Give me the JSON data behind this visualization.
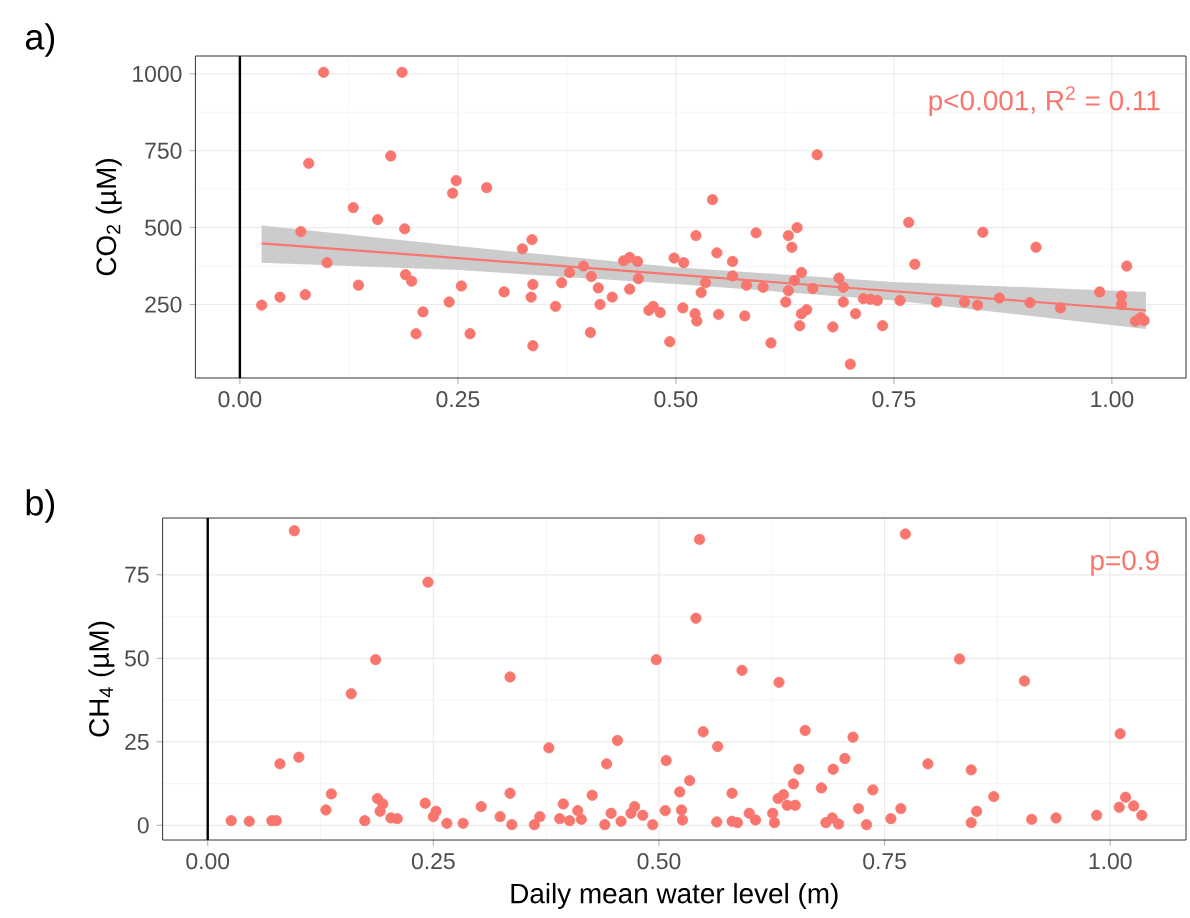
{
  "chart_data": [
    {
      "type": "scatter",
      "title": "a)",
      "ylabel": "CO$_{2}$ (µM)",
      "annotations": [
        "p<0.001, R$^{2}$ = 0.11"
      ],
      "xlim": [
        -0.051,
        1.085
      ],
      "ylim": [
        11,
        1058
      ],
      "xticks": [
        {
          "value": 0,
          "label": "0.00"
        },
        {
          "value": 0.25,
          "label": "0.25"
        },
        {
          "value": 0.5,
          "label": "0.50"
        },
        {
          "value": 0.75,
          "label": "0.75"
        },
        {
          "value": 1,
          "label": "1.00"
        }
      ],
      "yticks": [
        250,
        500,
        750,
        1000
      ],
      "grid": true,
      "marker": "circle",
      "ref_lines": [
        {
          "axis": "x",
          "value": 0,
          "color": "#000000"
        }
      ],
      "series": [
        {
          "color": "#f8766d",
          "x": [
            0.096,
            0.186,
            0.079,
            0.173,
            0.248,
            0.244,
            0.283,
            0.13,
            0.158,
            0.189,
            0.07,
            0.1,
            0.19,
            0.197,
            0.136,
            0.075,
            0.046,
            0.025,
            0.21,
            0.202,
            0.264,
            0.24,
            0.254,
            0.303,
            0.324,
            0.335,
            0.336,
            0.334,
            0.336,
            0.362,
            0.369,
            0.378,
            0.394,
            0.403,
            0.411,
            0.413,
            0.402,
            0.427,
            0.44,
            0.447,
            0.456,
            0.447,
            0.457,
            0.469,
            0.474,
            0.482,
            0.493,
            0.498,
            0.509,
            0.508,
            0.523,
            0.542,
            0.529,
            0.534,
            0.522,
            0.524,
            0.547,
            0.565,
            0.565,
            0.549,
            0.579,
            0.581,
            0.592,
            0.6,
            0.609,
            0.629,
            0.639,
            0.633,
            0.644,
            0.636,
            0.629,
            0.626,
            0.657,
            0.662,
            0.65,
            0.644,
            0.642,
            0.687,
            0.692,
            0.692,
            0.68,
            0.706,
            0.7,
            0.715,
            0.723,
            0.731,
            0.737,
            0.757,
            0.767,
            0.774,
            0.799,
            0.831,
            0.846,
            0.852,
            0.871,
            0.906,
            0.913,
            0.941,
            0.986,
            1.011,
            1.011,
            1.017,
            1.027,
            1.037,
            1.033
          ],
          "values": [
            1005,
            1005,
            709,
            733,
            653,
            612,
            630,
            565,
            526,
            496,
            487,
            386,
            347,
            326,
            313,
            282,
            274,
            248,
            226,
            155,
            155,
            258,
            310,
            291,
            431,
            461,
            315,
            274,
            116,
            244,
            321,
            354,
            375,
            341,
            304,
            250,
            159,
            274,
            392,
            403,
            390,
            300,
            334,
            231,
            244,
            224,
            129,
            401,
            386,
            239,
            474,
            591,
            289,
            321,
            220,
            196,
            418,
            390,
            343,
            218,
            213,
            313,
            483,
            306,
            125,
            474,
            500,
            436,
            354,
            328,
            295,
            258,
            302,
            737,
            233,
            220,
            181,
            336,
            306,
            258,
            177,
            220,
            56,
            269,
            267,
            263,
            181,
            263,
            517,
            381,
            258,
            258,
            248,
            485,
            271,
            256,
            436,
            239,
            291,
            278,
            250,
            375,
            196,
            198,
            207
          ]
        },
        {
          "type": "line",
          "marker": "none",
          "color": "#f8766d",
          "x": [
            0.025,
            0.25,
            0.5,
            0.75,
            1.039
          ],
          "values": [
            449,
            401,
            347,
            293,
            231
          ],
          "lower": [
            386,
            362,
            317,
            263,
            170
          ],
          "upper": [
            507,
            440,
            371,
            323,
            291
          ]
        }
      ]
    },
    {
      "type": "scatter",
      "title": "b)",
      "xlabel": "Daily mean water level (m)",
      "ylabel": "CH$_{4}$ (µM)",
      "annotations": [
        "p=0.9"
      ],
      "xlim": [
        -0.05,
        1.084
      ],
      "ylim": [
        -4.4,
        92
      ],
      "xticks": [
        {
          "value": 0,
          "label": "0.00"
        },
        {
          "value": 0.25,
          "label": "0.25"
        },
        {
          "value": 0.5,
          "label": "0.50"
        },
        {
          "value": 0.75,
          "label": "0.75"
        },
        {
          "value": 1,
          "label": "1.00"
        }
      ],
      "yticks": [
        0,
        25,
        50,
        75
      ],
      "grid": true,
      "marker": "circle",
      "ref_lines": [
        {
          "axis": "x",
          "value": 0,
          "color": "#000000"
        }
      ],
      "series": [
        {
          "color": "#f8766d",
          "x": [
            0.096,
            0.08,
            0.101,
            0.026,
            0.046,
            0.071,
            0.076,
            0.131,
            0.137,
            0.159,
            0.186,
            0.188,
            0.194,
            0.191,
            0.203,
            0.21,
            0.174,
            0.244,
            0.241,
            0.253,
            0.25,
            0.265,
            0.283,
            0.303,
            0.324,
            0.335,
            0.335,
            0.337,
            0.362,
            0.368,
            0.378,
            0.394,
            0.39,
            0.401,
            0.41,
            0.414,
            0.426,
            0.442,
            0.454,
            0.44,
            0.447,
            0.458,
            0.473,
            0.469,
            0.482,
            0.493,
            0.497,
            0.508,
            0.507,
            0.523,
            0.534,
            0.525,
            0.526,
            0.545,
            0.541,
            0.549,
            0.565,
            0.592,
            0.633,
            0.662,
            0.715,
            0.581,
            0.564,
            0.581,
            0.587,
            0.6,
            0.607,
            0.626,
            0.628,
            0.632,
            0.638,
            0.642,
            0.649,
            0.655,
            0.651,
            0.68,
            0.693,
            0.706,
            0.685,
            0.692,
            0.699,
            0.721,
            0.73,
            0.737,
            0.757,
            0.768,
            0.773,
            0.798,
            0.833,
            0.846,
            0.852,
            0.846,
            0.871,
            0.905,
            0.913,
            0.94,
            0.985,
            1.011,
            1.01,
            1.017,
            1.026,
            1.035
          ],
          "values": [
            88.2,
            18.4,
            20.4,
            1.4,
            1.2,
            1.4,
            1.4,
            4.6,
            9.4,
            39.4,
            49.6,
            8.0,
            6.4,
            4.2,
            2.2,
            2.0,
            1.4,
            72.8,
            6.6,
            4.2,
            2.6,
            0.6,
            0.6,
            5.6,
            2.6,
            44.4,
            9.6,
            0.2,
            0.2,
            2.6,
            23.2,
            6.4,
            2.0,
            1.4,
            4.4,
            1.8,
            9.0,
            18.4,
            25.4,
            0.2,
            3.6,
            1.2,
            5.6,
            3.6,
            3.0,
            0.2,
            49.6,
            19.4,
            4.4,
            10.0,
            13.4,
            4.6,
            1.6,
            85.6,
            62.0,
            28.0,
            23.6,
            46.4,
            42.8,
            28.4,
            26.4,
            9.6,
            1.0,
            1.2,
            0.8,
            3.6,
            1.6,
            3.6,
            0.8,
            8.0,
            9.2,
            6.0,
            12.4,
            16.8,
            6.0,
            11.2,
            16.8,
            20.0,
            0.8,
            2.2,
            0.4,
            5.0,
            0.2,
            10.6,
            2.0,
            5.0,
            87.2,
            18.4,
            49.8,
            16.6,
            4.2,
            0.8,
            8.6,
            43.2,
            1.8,
            2.2,
            3.0,
            27.4,
            5.4,
            8.4,
            5.8,
            3.0
          ]
        }
      ]
    }
  ]
}
